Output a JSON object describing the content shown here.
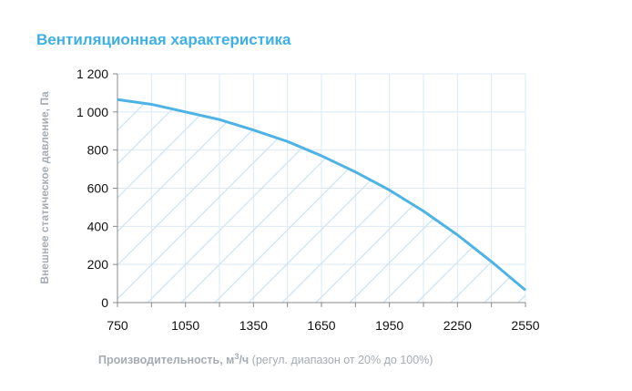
{
  "chart_data": {
    "type": "area",
    "title": "Вентиляционная характеристика",
    "xlabel_bold": "Производительность, м",
    "xlabel_sup": "3",
    "xlabel_unit": "/ч",
    "xlabel_note": " (регул. диапазон от 20% до 100%)",
    "ylabel": "Внешнее статическое давление, Па",
    "xlim": [
      750,
      2550
    ],
    "ylim": [
      0,
      1200
    ],
    "x_ticks": [
      750,
      1050,
      1350,
      1650,
      1950,
      2250,
      2550
    ],
    "x_minor_step": 150,
    "y_ticks": [
      0,
      200,
      400,
      600,
      800,
      1000,
      1200
    ],
    "y_tick_labels": [
      "0",
      "200",
      "400",
      "600",
      "800",
      "1 000",
      "1 200"
    ],
    "grid": true,
    "series": [
      {
        "name": "curve",
        "color": "#4db3e6",
        "x": [
          750,
          900,
          1050,
          1200,
          1350,
          1500,
          1650,
          1800,
          1950,
          2100,
          2250,
          2400,
          2550
        ],
        "y": [
          1065,
          1040,
          1000,
          960,
          905,
          845,
          770,
          685,
          590,
          480,
          355,
          215,
          65
        ]
      }
    ]
  }
}
